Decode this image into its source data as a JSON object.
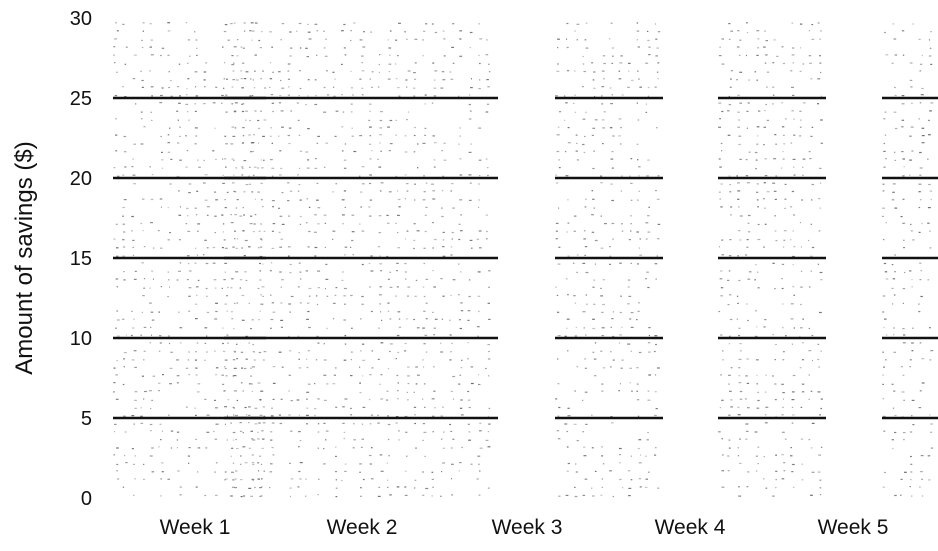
{
  "chart_data": {
    "type": "bar",
    "title": "",
    "xlabel": "",
    "ylabel": "Amount of savings ($)",
    "ylim": [
      0,
      30
    ],
    "yticks": [
      "0",
      "5",
      "10",
      "15",
      "20",
      "25",
      "30"
    ],
    "categories": [
      "Week 1",
      "Week 2",
      "Week 3",
      "Week 4",
      "Week 5"
    ],
    "grid": false,
    "legend": "none",
    "note": "Stacked, dotted-fill bars partitioned by horizontal lines every $5; an unlabeled narrow bar sits before Week 1.",
    "bars": [
      {
        "category": "",
        "value": 30,
        "segment_lines": [
          5,
          10,
          15,
          20,
          25
        ],
        "dense_fill_to": 30
      },
      {
        "category": "Week 1",
        "value": 30,
        "segment_lines": [
          5,
          10,
          15,
          20,
          25
        ],
        "dense_fill_to": 30
      },
      {
        "category": "Week 2",
        "value": 30,
        "segment_lines": [
          5,
          10,
          15,
          20,
          25
        ],
        "dense_fill_to": 30
      },
      {
        "category": "Week 3",
        "value": 30,
        "segment_lines": [
          5,
          10,
          15,
          20,
          25
        ],
        "dense_fill_to": 30
      },
      {
        "category": "Week 4",
        "value": 30,
        "segment_lines": [
          5,
          10,
          15,
          20,
          25
        ],
        "dense_fill_to": 30
      },
      {
        "category": "Week 5",
        "value": 30,
        "segment_lines": [
          5,
          10,
          15,
          20,
          25
        ],
        "dense_fill_to": 30
      }
    ],
    "colors": {
      "line": "#111111",
      "dots": "#555555",
      "background": "#ffffff"
    }
  }
}
